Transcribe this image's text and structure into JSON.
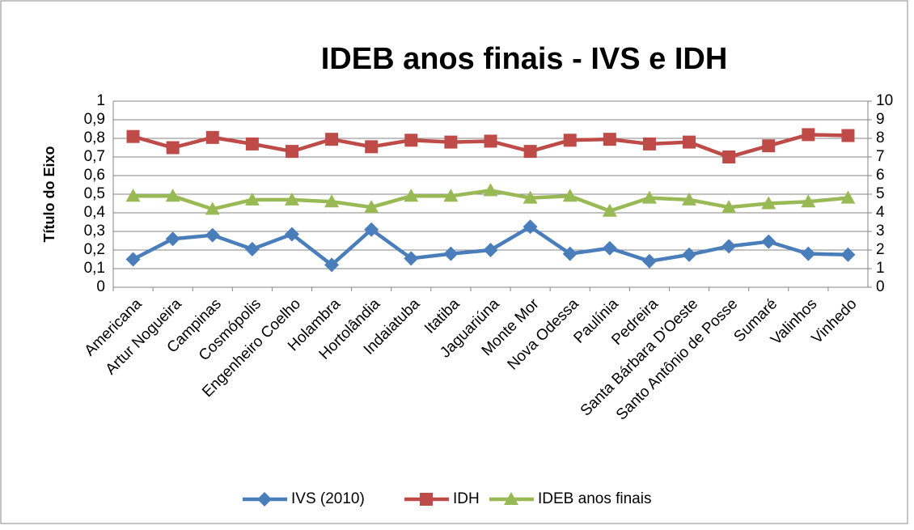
{
  "chart_data": {
    "type": "line",
    "title": "IDEB anos finais - IVS e IDH",
    "y_label": "Título do Eixo",
    "categories": [
      "Americana",
      "Artur Nogueira",
      "Campinas",
      "Cosmópolis",
      "Engenheiro Coelho",
      "Holambra",
      "Hortolândia",
      "Indaiatuba",
      "Itatiba",
      "Jaguariúna",
      "Monte Mor",
      "Nova Odessa",
      "Paulínia",
      "Pedreira",
      "Santa Bárbara D'Oeste",
      "Santo Antônio de Posse",
      "Sumaré",
      "Valinhos",
      "Vinhedo"
    ],
    "series": [
      {
        "name": "IVS (2010)",
        "color": "#4a7ebb",
        "values": [
          0.15,
          0.26,
          0.28,
          0.205,
          0.285,
          0.12,
          0.31,
          0.155,
          0.18,
          0.2,
          0.325,
          0.18,
          0.21,
          0.14,
          0.175,
          0.22,
          0.245,
          0.18,
          0.175
        ]
      },
      {
        "name": "IDH",
        "color": "#be4b48",
        "values": [
          0.81,
          0.75,
          0.805,
          0.77,
          0.73,
          0.795,
          0.755,
          0.79,
          0.78,
          0.785,
          0.73,
          0.79,
          0.795,
          0.77,
          0.78,
          0.7,
          0.76,
          0.82,
          0.815
        ]
      },
      {
        "name": "IDEB anos finais",
        "color": "#98b954",
        "axis": "y2",
        "values": [
          4.9,
          4.9,
          4.2,
          4.7,
          4.7,
          4.6,
          4.3,
          4.9,
          4.9,
          5.2,
          4.8,
          4.9,
          4.1,
          4.8,
          4.7,
          4.3,
          4.5,
          4.6,
          4.8
        ]
      }
    ],
    "ylim": [
      0,
      1
    ],
    "yticks": [
      0,
      {
        "value": 0.1,
        "label": "0,1"
      },
      {
        "value": 0.2,
        "label": "0,2"
      },
      {
        "value": 0.3,
        "label": "0,3"
      },
      {
        "value": 0.4,
        "label": "0,4"
      },
      {
        "value": 0.5,
        "label": "0,5"
      },
      {
        "value": 0.6,
        "label": "0,6"
      },
      {
        "value": 0.7,
        "label": "0,7"
      },
      {
        "value": 0.8,
        "label": "0,8"
      },
      {
        "value": 0.9,
        "label": "0,9"
      },
      1
    ],
    "y2lim": [
      0,
      10
    ],
    "y2ticks": [
      0,
      1,
      2,
      3,
      4,
      5,
      6,
      7,
      8,
      9,
      10
    ],
    "grid": true,
    "legend": "bottom"
  }
}
